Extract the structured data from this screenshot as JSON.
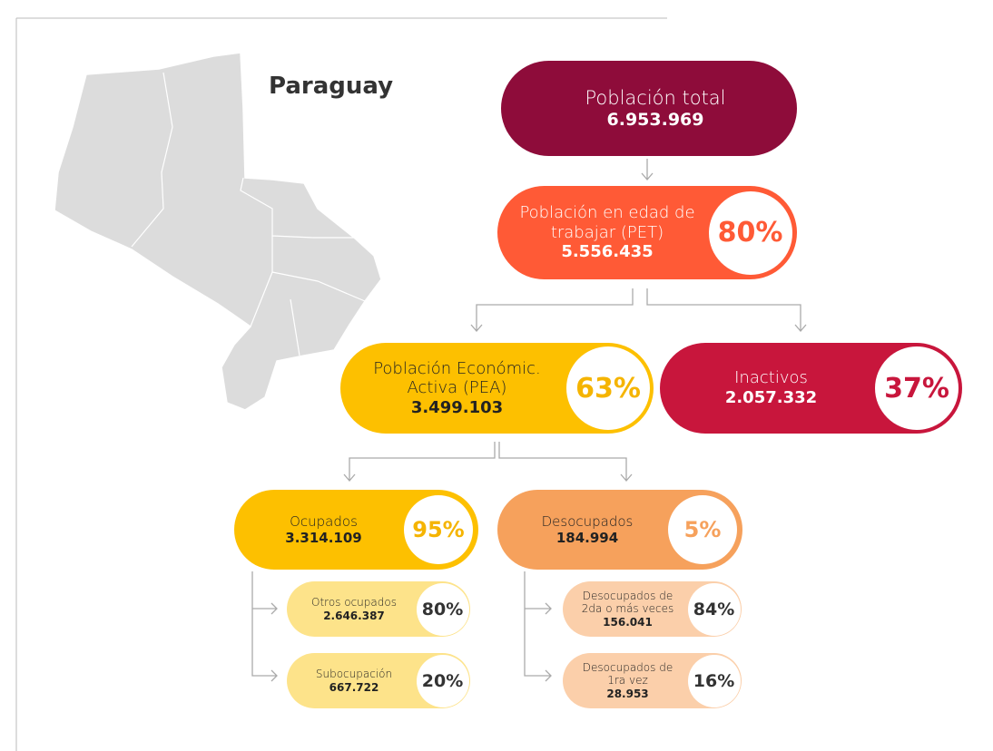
{
  "title": "Paraguay",
  "nodes": [
    {
      "label": [
        "Población total"
      ],
      "value": "6.953.969",
      "percent": null,
      "color": "#8e0c3a"
    },
    {
      "label": [
        "Población en edad de",
        "trabajar (PET)"
      ],
      "value": "5.556.435",
      "percent": "80%",
      "color": "#ff5a36"
    },
    {
      "label": [
        "Población Económic.",
        "Activa (PEA)"
      ],
      "value": "3.499.103",
      "percent": "63%",
      "color": "#fdc000"
    },
    {
      "label": [
        "Inactivos"
      ],
      "value": "2.057.332",
      "percent": "37%",
      "color": "#c8163c"
    },
    {
      "label": [
        "Ocupados"
      ],
      "value": "3.314.109",
      "percent": "95%",
      "color": "#fdc000"
    },
    {
      "label": [
        "Desocupados"
      ],
      "value": "184.994",
      "percent": "5%",
      "color": "#f6a15c"
    },
    {
      "label": [
        "Otros ocupados"
      ],
      "value": "2.646.387",
      "percent": "80%",
      "color": "#fde38a"
    },
    {
      "label": [
        "Subocupación"
      ],
      "value": "667.722",
      "percent": "20%",
      "color": "#fde38a"
    },
    {
      "label": [
        "Desocupados de",
        "2da o más veces"
      ],
      "value": "156.041",
      "percent": "84%",
      "color": "#fbcfaa"
    },
    {
      "label": [
        "Desocupados de",
        "1ra vez"
      ],
      "value": "28.953",
      "percent": "16%",
      "color": "#fbcfaa"
    }
  ]
}
